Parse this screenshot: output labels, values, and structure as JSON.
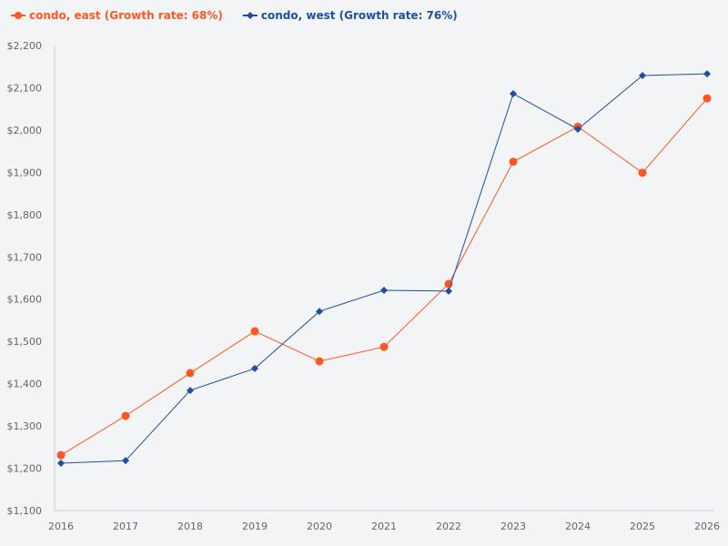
{
  "chart_data": {
    "type": "line",
    "x": [
      "2016",
      "2017",
      "2018",
      "2019",
      "2020",
      "2021",
      "2022",
      "2023",
      "2024",
      "2025",
      "2026"
    ],
    "series": [
      {
        "name": "condo, east (Growth rate: 68%)",
        "color": "#ff5722",
        "marker": "circle",
        "values": [
          1231,
          1324,
          1425,
          1524,
          1453,
          1487,
          1636,
          1925,
          2008,
          1899,
          2075
        ]
      },
      {
        "name": "condo, west (Growth rate: 76%)",
        "color": "#1e4fa0",
        "marker": "diamond",
        "values": [
          1212,
          1218,
          1384,
          1436,
          1571,
          1621,
          1619,
          2086,
          2002,
          2129,
          2133
        ]
      }
    ],
    "yticks": [
      "$1,100",
      "$1,200",
      "$1,300",
      "$1,400",
      "$1,500",
      "$1,600",
      "$1,700",
      "$1,800",
      "$1,900",
      "$2,000",
      "$2,100",
      "$2,200"
    ],
    "ylim": [
      1100,
      2200
    ],
    "legend": "top-left",
    "grid": false
  }
}
